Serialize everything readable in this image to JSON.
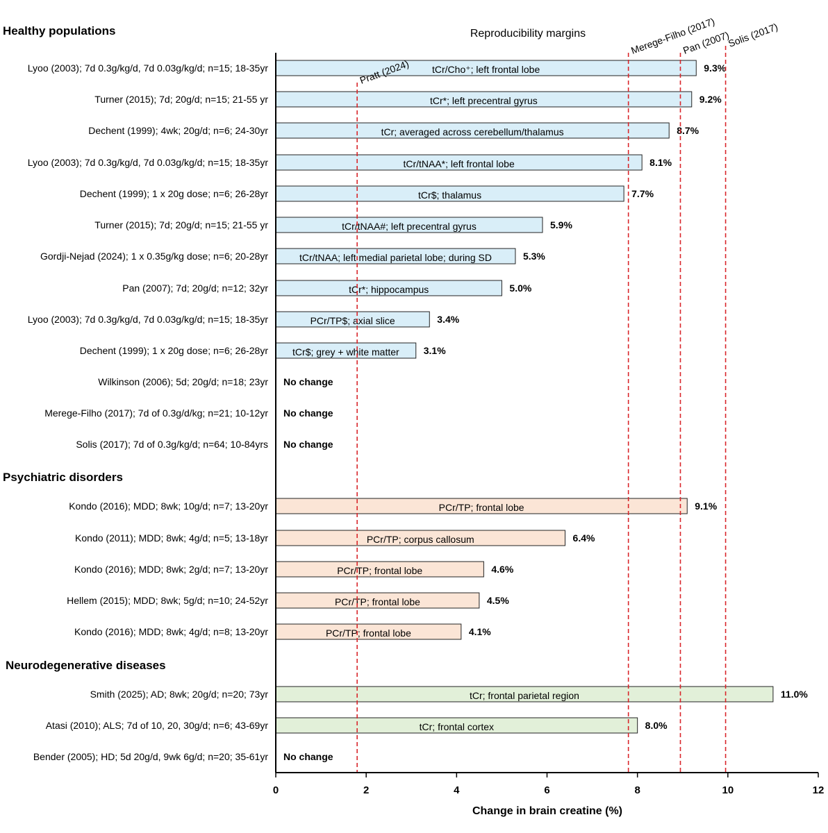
{
  "chart_data": {
    "type": "bar",
    "orientation": "horizontal",
    "title": "Reproducibility margins",
    "xlabel": "Change in brain creatine (%)",
    "xlim": [
      0,
      12
    ],
    "xticks": [
      0,
      2,
      4,
      6,
      8,
      10,
      12
    ],
    "grid": false,
    "groups": [
      {
        "name": "Healthy populations",
        "color": "#d9eef8",
        "rows": [
          {
            "study": "Lyoo (2003); 7d 0.3g/kg/d, 7d 0.03g/kg/d; n=15; 18-35yr",
            "measure": "tCr/Cho⁺; left frontal lobe",
            "value": 9.3,
            "value_label": "9.3%"
          },
          {
            "study": "Turner (2015); 7d; 20g/d; n=15; 21-55 yr",
            "measure": "tCr*; left precentral gyrus",
            "value": 9.2,
            "value_label": "9.2%"
          },
          {
            "study": "Dechent (1999); 4wk; 20g/d; n=6; 24-30yr",
            "measure": "tCr; averaged across cerebellum/thalamus",
            "value": 8.7,
            "value_label": "8.7%"
          },
          {
            "study": "Lyoo (2003); 7d 0.3g/kg/d, 7d 0.03g/kg/d; n=15; 18-35yr",
            "measure": "tCr/tNAA*; left frontal lobe",
            "value": 8.1,
            "value_label": "8.1%"
          },
          {
            "study": "Dechent (1999); 1 x 20g dose; n=6; 26-28yr",
            "measure": "tCr$; thalamus",
            "value": 7.7,
            "value_label": "7.7%"
          },
          {
            "study": "Turner (2015); 7d; 20g/d; n=15; 21-55 yr",
            "measure": "tCr/tNAA#; left precentral gyrus",
            "value": 5.9,
            "value_label": "5.9%"
          },
          {
            "study": "Gordji-Nejad (2024); 1 x 0.35g/kg dose; n=6; 20-28yr",
            "measure": "tCr/tNAA; left medial parietal lobe; during SD",
            "value": 5.3,
            "value_label": "5.3%"
          },
          {
            "study": "Pan (2007); 7d; 20g/d; n=12; 32yr",
            "measure": "tCr*; hippocampus",
            "value": 5.0,
            "value_label": "5.0%"
          },
          {
            "study": "Lyoo (2003); 7d 0.3g/kg/d, 7d 0.03g/kg/d; n=15; 18-35yr",
            "measure": "PCr/TP$;  axial slice",
            "value": 3.4,
            "value_label": "3.4%"
          },
          {
            "study": "Dechent (1999); 1 x 20g dose; n=6; 26-28yr",
            "measure": "tCr$; grey + white matter",
            "value": 3.1,
            "value_label": "3.1%"
          },
          {
            "study": "Wilkinson (2006); 5d; 20g/d; n=18; 23yr",
            "measure": "",
            "value": 0,
            "value_label": "No change"
          },
          {
            "study": "Merege-Filho (2017); 7d of 0.3g/d/kg; n=21; 10-12yr",
            "measure": "",
            "value": 0,
            "value_label": "No change"
          },
          {
            "study": "Solis (2017); 7d of 0.3g/kg/d; n=64; 10-84yrs",
            "measure": "",
            "value": 0,
            "value_label": "No change"
          }
        ]
      },
      {
        "name": "Psychiatric disorders",
        "color": "#fbe5d6",
        "rows": [
          {
            "study": "Kondo (2016); MDD; 8wk; 10g/d; n=7; 13-20yr",
            "measure": "PCr/TP; frontal lobe",
            "value": 9.1,
            "value_label": "9.1%"
          },
          {
            "study": "Kondo (2011); MDD; 8wk; 4g/d; n=5; 13-18yr",
            "measure": "PCr/TP; corpus callosum",
            "value": 6.4,
            "value_label": "6.4%"
          },
          {
            "study": "Kondo (2016); MDD; 8wk; 2g/d; n=7; 13-20yr",
            "measure": "PCr/TP; frontal lobe",
            "value": 4.6,
            "value_label": "4.6%"
          },
          {
            "study": "Hellem (2015); MDD; 8wk; 5g/d; n=10; 24-52yr",
            "measure": "PCr/TP; frontal lobe",
            "value": 4.5,
            "value_label": "4.5%"
          },
          {
            "study": "Kondo (2016); MDD; 8wk; 4g/d; n=8; 13-20yr",
            "measure": "PCr/TP; frontal lobe",
            "value": 4.1,
            "value_label": "4.1%"
          }
        ]
      },
      {
        "name": "Neurodegenerative diseases",
        "color": "#e2f0d9",
        "rows": [
          {
            "study": "Smith (2025); AD; 8wk; 20g/d; n=20; 73yr",
            "measure": "tCr; frontal parietal region",
            "value": 11.0,
            "value_label": "11.0%"
          },
          {
            "study": "Atasi (2010); ALS; 7d of 10, 20, 30g/d; n=6; 43-69yr",
            "measure": "tCr; frontal cortex",
            "value": 8.0,
            "value_label": "8.0%"
          },
          {
            "study": "Bender (2005); HD; 5d 20g/d, 9wk 6g/d; n=20; 35-61yr",
            "measure": "",
            "value": 0,
            "value_label": "No change"
          }
        ]
      }
    ],
    "reference_lines": [
      {
        "label": "Pratt (2024)",
        "value": 1.8
      },
      {
        "label": "Merege-Filho (2017)",
        "value": 7.8
      },
      {
        "label": "Pan (2007)",
        "value": 8.95
      },
      {
        "label": "Solis (2017)",
        "value": 9.95
      }
    ],
    "reference_color": "#d9262b"
  }
}
